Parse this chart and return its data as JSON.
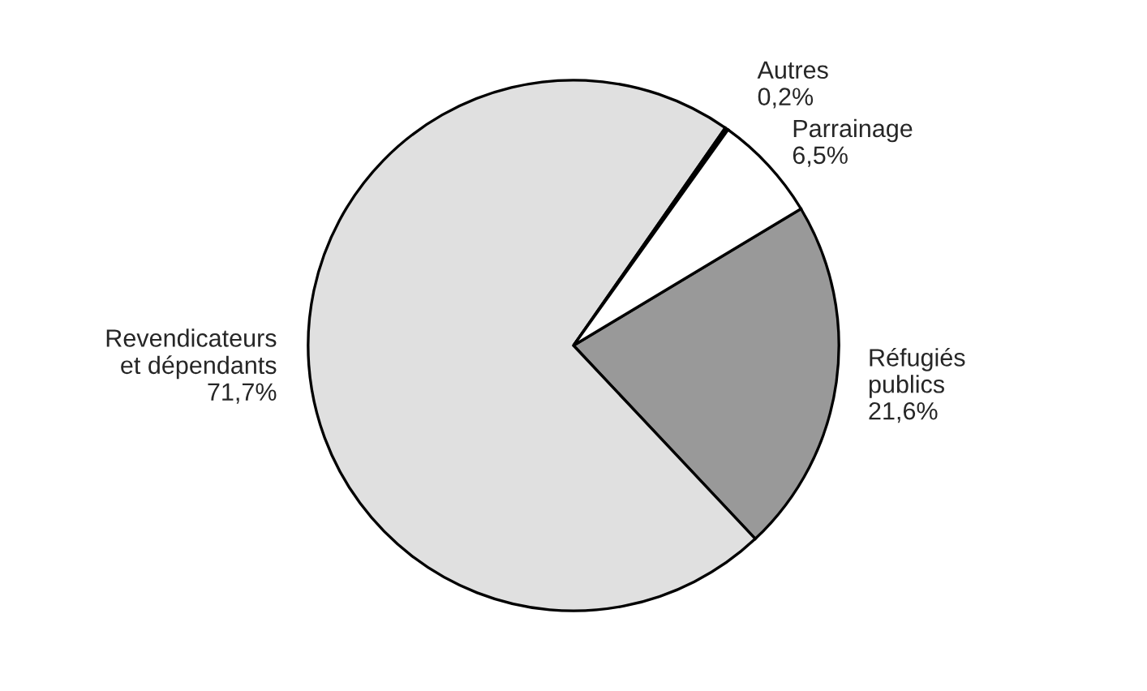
{
  "chart_data": {
    "type": "pie",
    "categories": [
      "Réfugiés publics",
      "Revendicateurs et dépendants",
      "Autres",
      "Parrainage"
    ],
    "values": [
      21.6,
      71.7,
      0.2,
      6.5
    ],
    "value_labels": [
      "21,6%",
      "71,7%",
      "0,2%",
      "6,5%"
    ],
    "colors": [
      "#999999",
      "#e0e0e0",
      "#000000",
      "#ffffff"
    ],
    "legend": false
  }
}
